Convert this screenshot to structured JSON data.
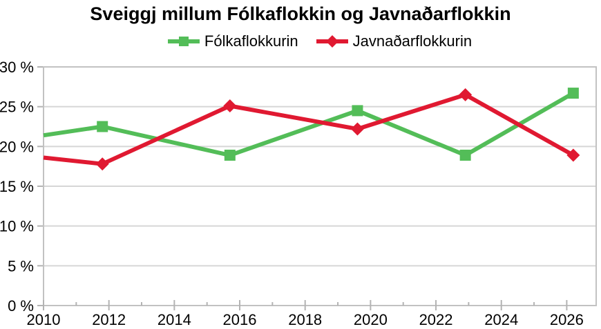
{
  "title": "Sveiggj millum Fólkaflokkin og Javnaðarflokkin",
  "colors": {
    "background": "#ffffff",
    "text": "#000000",
    "gridline": "#d6d6d6",
    "axis_frame": "#c2c2c2",
    "tick": "#b3b3b3",
    "series_green": "#53bd58",
    "series_red": "#e01931"
  },
  "chart_data": {
    "type": "line",
    "title": "Sveiggj millum Fólkaflokkin og Javnaðarflokkin",
    "legend_position": "top",
    "grid": "horizontal-only",
    "x_axis": {
      "label": "",
      "range": [
        2010,
        2026.9
      ],
      "major_ticks": [
        2010,
        2012,
        2014,
        2016,
        2018,
        2020,
        2022,
        2024,
        2026
      ],
      "tick_labels": [
        "2010",
        "2012",
        "2014",
        "2016",
        "2018",
        "2020",
        "2022",
        "2024",
        "2026"
      ],
      "minor_ticks": [
        2011,
        2013,
        2015,
        2017,
        2019,
        2021,
        2023,
        2025
      ]
    },
    "y_axis": {
      "label": "",
      "range": [
        0,
        30
      ],
      "ticks": [
        0,
        5,
        10,
        15,
        20,
        25,
        30
      ],
      "tick_labels": [
        "0 %",
        "5 %",
        "10 %",
        "15 %",
        "20 %",
        "25 %",
        "30 %"
      ],
      "gridlines": true
    },
    "series": [
      {
        "name": "Fólkaflokkurin",
        "color": "#53bd58",
        "marker": "square",
        "points": [
          {
            "x": 2010.0,
            "y": 21.4,
            "marker": false
          },
          {
            "x": 2011.8,
            "y": 22.5,
            "marker": true
          },
          {
            "x": 2015.7,
            "y": 18.9,
            "marker": true
          },
          {
            "x": 2019.6,
            "y": 24.5,
            "marker": true
          },
          {
            "x": 2022.9,
            "y": 18.9,
            "marker": true
          },
          {
            "x": 2026.2,
            "y": 26.7,
            "marker": true
          }
        ]
      },
      {
        "name": "Javnaðarflokkurin",
        "color": "#e01931",
        "marker": "diamond",
        "points": [
          {
            "x": 2010.0,
            "y": 18.6,
            "marker": false
          },
          {
            "x": 2011.8,
            "y": 17.8,
            "marker": true
          },
          {
            "x": 2015.7,
            "y": 25.1,
            "marker": true
          },
          {
            "x": 2019.6,
            "y": 22.2,
            "marker": true
          },
          {
            "x": 2022.9,
            "y": 26.5,
            "marker": true
          },
          {
            "x": 2026.2,
            "y": 18.9,
            "marker": true
          }
        ]
      }
    ]
  }
}
